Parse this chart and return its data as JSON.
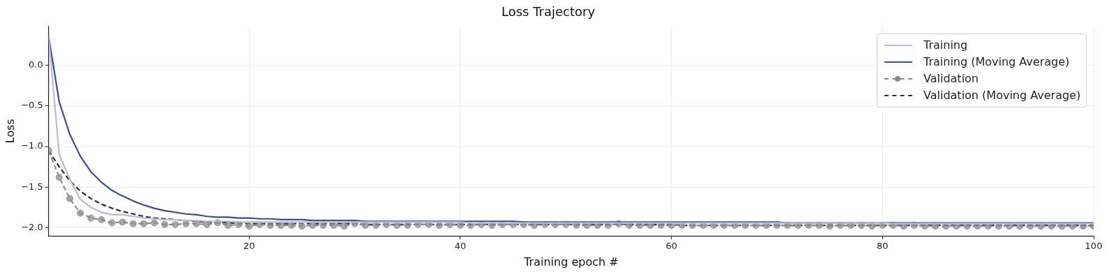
{
  "chart_data": {
    "type": "line",
    "title": "Loss Trajectory",
    "xlabel": "Training epoch #",
    "ylabel": "Loss",
    "x": [
      1,
      2,
      3,
      4,
      5,
      6,
      7,
      8,
      9,
      10,
      11,
      12,
      13,
      14,
      15,
      16,
      17,
      18,
      19,
      20,
      21,
      22,
      23,
      24,
      25,
      26,
      27,
      28,
      29,
      30,
      31,
      32,
      33,
      34,
      35,
      36,
      37,
      38,
      39,
      40,
      41,
      42,
      43,
      44,
      45,
      46,
      47,
      48,
      49,
      50,
      51,
      52,
      53,
      54,
      55,
      56,
      57,
      58,
      59,
      60,
      61,
      62,
      63,
      64,
      65,
      66,
      67,
      68,
      69,
      70,
      71,
      72,
      73,
      74,
      75,
      76,
      77,
      78,
      79,
      80,
      81,
      82,
      83,
      84,
      85,
      86,
      87,
      88,
      89,
      90,
      91,
      92,
      93,
      94,
      95,
      96,
      97,
      98,
      99,
      100
    ],
    "xlim": [
      1,
      100
    ],
    "xticks": [
      20,
      40,
      60,
      80,
      100
    ],
    "ylim": [
      -2.1,
      0.48
    ],
    "yticks": [
      {
        "value": -2,
        "label": "−2.0"
      },
      {
        "value": -1.5,
        "label": "−1.5"
      },
      {
        "value": -1,
        "label": "−1.0"
      },
      {
        "value": -0.5,
        "label": "−0.5"
      },
      {
        "value": 0,
        "label": "0.0"
      }
    ],
    "grid": true,
    "legend": "top right",
    "series": [
      {
        "name": "Training",
        "color": "#b3bcd9",
        "line_style": "solid",
        "marker": "none",
        "values": [
          0.35,
          -1.1,
          -1.4,
          -1.65,
          -1.75,
          -1.81,
          -1.84,
          -1.84,
          -1.86,
          -1.88,
          -1.89,
          -1.9,
          -1.9,
          -1.91,
          -1.91,
          -1.92,
          -1.92,
          -1.92,
          -1.93,
          -1.93,
          -1.93,
          -1.93,
          -1.93,
          -1.93,
          -1.93,
          -1.93,
          -1.93,
          -1.93,
          -1.93,
          -1.93,
          -1.93,
          -1.93,
          -1.93,
          -1.93,
          -1.93,
          -1.93,
          -1.93,
          -1.93,
          -1.93,
          -1.93,
          -1.94,
          -1.94,
          -1.94,
          -1.94,
          -1.94,
          -1.94,
          -1.94,
          -1.94,
          -1.94,
          -1.94,
          -1.94,
          -1.94,
          -1.94,
          -1.94,
          -1.94,
          -1.94,
          -1.94,
          -1.94,
          -1.94,
          -1.94,
          -1.94,
          -1.94,
          -1.94,
          -1.94,
          -1.94,
          -1.94,
          -1.94,
          -1.94,
          -1.94,
          -1.94,
          -1.94,
          -1.94,
          -1.94,
          -1.94,
          -1.94,
          -1.94,
          -1.94,
          -1.94,
          -1.94,
          -1.94,
          -1.95,
          -1.95,
          -1.95,
          -1.95,
          -1.95,
          -1.95,
          -1.95,
          -1.95,
          -1.95,
          -1.95,
          -1.95,
          -1.95,
          -1.95,
          -1.95,
          -1.95,
          -1.95,
          -1.95,
          -1.95,
          -1.95,
          -1.95
        ]
      },
      {
        "name": "Training (Moving Average)",
        "color": "#3d4e8e",
        "line_style": "solid",
        "marker": "none",
        "values": [
          0.35,
          -0.45,
          -0.85,
          -1.12,
          -1.31,
          -1.44,
          -1.54,
          -1.61,
          -1.67,
          -1.72,
          -1.76,
          -1.79,
          -1.81,
          -1.83,
          -1.84,
          -1.86,
          -1.87,
          -1.87,
          -1.88,
          -1.88,
          -1.89,
          -1.89,
          -1.9,
          -1.9,
          -1.9,
          -1.91,
          -1.91,
          -1.91,
          -1.91,
          -1.91,
          -1.92,
          -1.92,
          -1.92,
          -1.92,
          -1.92,
          -1.92,
          -1.92,
          -1.92,
          -1.92,
          -1.92,
          -1.92,
          -1.92,
          -1.92,
          -1.92,
          -1.92,
          -1.93,
          -1.93,
          -1.93,
          -1.93,
          -1.93,
          -1.93,
          -1.93,
          -1.93,
          -1.93,
          -1.93,
          -1.93,
          -1.93,
          -1.93,
          -1.93,
          -1.93,
          -1.93,
          -1.93,
          -1.93,
          -1.93,
          -1.93,
          -1.93,
          -1.93,
          -1.93,
          -1.93,
          -1.93,
          -1.94,
          -1.94,
          -1.94,
          -1.94,
          -1.94,
          -1.94,
          -1.94,
          -1.94,
          -1.94,
          -1.94,
          -1.94,
          -1.94,
          -1.94,
          -1.94,
          -1.94,
          -1.94,
          -1.94,
          -1.94,
          -1.94,
          -1.94,
          -1.94,
          -1.94,
          -1.94,
          -1.94,
          -1.94,
          -1.94,
          -1.94,
          -1.94,
          -1.94,
          -1.94
        ]
      },
      {
        "name": "Validation",
        "color": "#8c8c8c",
        "line_style": "dashed",
        "marker": "circle",
        "values": [
          -1.05,
          -1.38,
          -1.64,
          -1.82,
          -1.88,
          -1.9,
          -1.94,
          -1.93,
          -1.95,
          -1.95,
          -1.94,
          -1.96,
          -1.96,
          -1.95,
          -1.95,
          -1.96,
          -1.94,
          -1.97,
          -1.96,
          -1.98,
          -1.96,
          -1.97,
          -1.97,
          -1.97,
          -1.98,
          -1.97,
          -1.97,
          -1.97,
          -1.98,
          -1.95,
          -1.97,
          -1.97,
          -1.96,
          -1.97,
          -1.97,
          -1.96,
          -1.96,
          -1.97,
          -1.96,
          -1.97,
          -1.97,
          -1.96,
          -1.97,
          -1.96,
          -1.96,
          -1.96,
          -1.97,
          -1.96,
          -1.96,
          -1.96,
          -1.97,
          -1.97,
          -1.97,
          -1.97,
          -1.95,
          -1.97,
          -1.97,
          -1.97,
          -1.97,
          -1.97,
          -1.97,
          -1.97,
          -1.97,
          -1.97,
          -1.97,
          -1.97,
          -1.97,
          -1.97,
          -1.97,
          -1.97,
          -1.97,
          -1.97,
          -1.97,
          -1.97,
          -1.98,
          -1.97,
          -1.97,
          -1.97,
          -1.98,
          -1.97,
          -1.97,
          -1.98,
          -1.97,
          -1.98,
          -1.98,
          -1.98,
          -1.98,
          -1.98,
          -1.98,
          -1.98,
          -1.98,
          -1.98,
          -1.98,
          -1.98,
          -1.98,
          -1.98,
          -1.98,
          -1.98,
          -1.98,
          -1.98
        ]
      },
      {
        "name": "Validation (Moving Average)",
        "color": "#2e2e2e",
        "line_style": "dashed",
        "marker": "none",
        "values": [
          -1.05,
          -1.25,
          -1.42,
          -1.55,
          -1.64,
          -1.71,
          -1.76,
          -1.8,
          -1.83,
          -1.86,
          -1.88,
          -1.89,
          -1.9,
          -1.91,
          -1.92,
          -1.93,
          -1.93,
          -1.94,
          -1.94,
          -1.95,
          -1.95,
          -1.95,
          -1.95,
          -1.95,
          -1.95,
          -1.95,
          -1.95,
          -1.95,
          -1.95,
          -1.95,
          -1.96,
          -1.96,
          -1.96,
          -1.96,
          -1.96,
          -1.96,
          -1.96,
          -1.96,
          -1.96,
          -1.96,
          -1.96,
          -1.96,
          -1.96,
          -1.96,
          -1.96,
          -1.96,
          -1.96,
          -1.96,
          -1.96,
          -1.96,
          -1.96,
          -1.96,
          -1.96,
          -1.96,
          -1.96,
          -1.96,
          -1.96,
          -1.96,
          -1.96,
          -1.96,
          -1.97,
          -1.97,
          -1.97,
          -1.97,
          -1.97,
          -1.97,
          -1.97,
          -1.97,
          -1.97,
          -1.97,
          -1.97,
          -1.97,
          -1.97,
          -1.97,
          -1.97,
          -1.97,
          -1.97,
          -1.97,
          -1.97,
          -1.97,
          -1.97,
          -1.97,
          -1.97,
          -1.97,
          -1.97,
          -1.97,
          -1.97,
          -1.97,
          -1.97,
          -1.97,
          -1.97,
          -1.97,
          -1.97,
          -1.97,
          -1.97,
          -1.97,
          -1.97,
          -1.97,
          -1.97,
          -1.97
        ]
      }
    ]
  }
}
